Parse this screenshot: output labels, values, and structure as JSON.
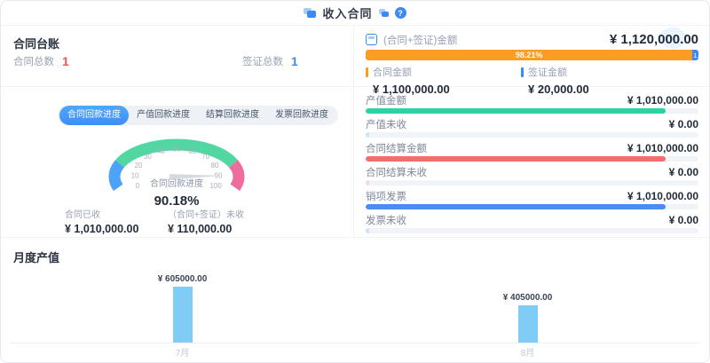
{
  "header": {
    "title": "收入合同",
    "help": "?"
  },
  "ledger": {
    "title": "合同台账",
    "stats": [
      {
        "label": "合同总数",
        "value": "1",
        "color": "#f5554a"
      },
      {
        "label": "签证总数",
        "value": "1",
        "color": "#3d8af2"
      }
    ],
    "tabs": [
      {
        "label": "合同回款进度"
      },
      {
        "label": "产值回款进度"
      },
      {
        "label": "结算回款进度"
      },
      {
        "label": "发票回款进度"
      }
    ],
    "active_tab": 0,
    "received_label": "合同已收",
    "received_value": "¥ 1,010,000.00",
    "unreceived_label": "（合同+签证）未收",
    "unreceived_value": "¥ 110,000.00"
  },
  "summary": {
    "title": "(合同+签证)金额",
    "total": "¥ 1,120,000.00",
    "bar": {
      "main_pct": 98.21,
      "main_label": "98.21%",
      "main_color": "#fb9c23",
      "sub_pct": 1.79,
      "sub_label": "1..",
      "sub_color": "#3d8af2"
    },
    "legend": [
      {
        "label": "合同金额",
        "value": "¥ 1,100,000.00",
        "color": "#fb9c23"
      },
      {
        "label": "签证金额",
        "value": "¥ 20,000.00",
        "color": "#3d8af2"
      }
    ],
    "rows": [
      {
        "label": "产值金额",
        "value": "¥ 1,010,000.00",
        "pct": 90.18,
        "color": "#2fd1a2"
      },
      {
        "label": "产值未收",
        "value": "¥ 0.00",
        "pct": 1,
        "color": "#c9e8f7"
      },
      {
        "label": "合同结算金额",
        "value": "¥ 1,010,000.00",
        "pct": 90.18,
        "color": "#f56d6d"
      },
      {
        "label": "合同结算未收",
        "value": "¥ 0.00",
        "pct": 1,
        "color": "#fad9dc"
      },
      {
        "label": "销项发票",
        "value": "¥ 1,010,000.00",
        "pct": 90.18,
        "color": "#4a8cf2"
      },
      {
        "label": "发票未收",
        "value": "¥ 0.00",
        "pct": 1,
        "color": "#cfe2fb"
      }
    ]
  },
  "monthly": {
    "title": "月度产值"
  },
  "chart_data": [
    {
      "type": "gauge",
      "title": "合同回款进度",
      "value": 90.18,
      "value_label": "90.18%",
      "min": 0,
      "max": 100,
      "tick_step": 10,
      "segments": [
        {
          "from": 0,
          "to": 20,
          "color": "#4da3f7"
        },
        {
          "from": 20,
          "to": 80,
          "color": "#52d6a2"
        },
        {
          "from": 80,
          "to": 100,
          "color": "#ee6d9e"
        }
      ],
      "needle_color": "#d6d9de"
    },
    {
      "type": "bar",
      "title": "月度产值",
      "categories": [
        "7月",
        "8月"
      ],
      "values": [
        605000,
        405000
      ],
      "labels": [
        "¥ 605000.00",
        "¥ 405000.00"
      ],
      "ylim": [
        0,
        700000
      ],
      "bar_color": "#7fcdf6"
    }
  ]
}
